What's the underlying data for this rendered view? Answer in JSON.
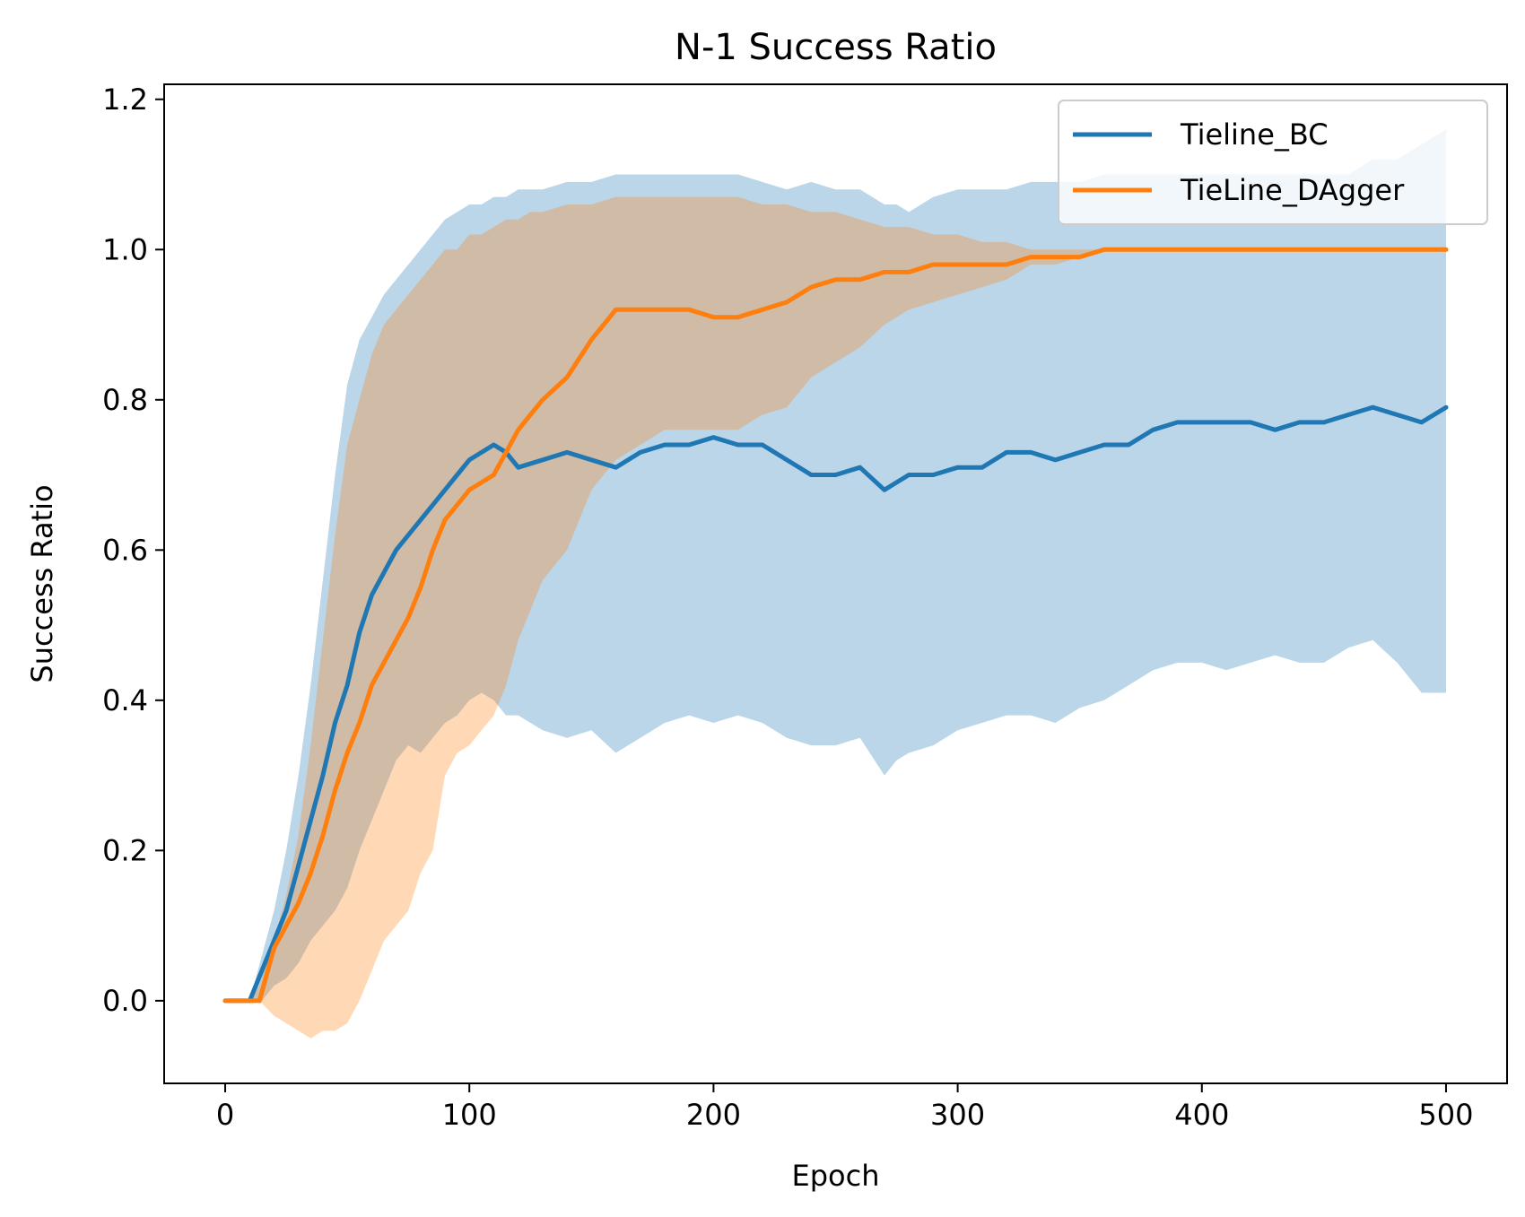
{
  "chart_data": {
    "type": "line",
    "title": "N-1 Success Ratio",
    "xlabel": "Epoch",
    "ylabel": "Success Ratio",
    "xlim": [
      -25,
      525
    ],
    "ylim": [
      -0.11,
      1.22
    ],
    "xticks": [
      0,
      100,
      200,
      300,
      400,
      500
    ],
    "yticks": [
      0.0,
      0.2,
      0.4,
      0.6,
      0.8,
      1.0,
      1.2
    ],
    "xtick_labels": [
      "0",
      "100",
      "200",
      "300",
      "400",
      "500"
    ],
    "ytick_labels": [
      "0.0",
      "0.2",
      "0.4",
      "0.6",
      "0.8",
      "1.0",
      "1.2"
    ],
    "grid": false,
    "legend_position": "top-right",
    "series": [
      {
        "name": "Tieline_BC",
        "color": "#1f77b4",
        "x": [
          0,
          10,
          15,
          20,
          25,
          30,
          35,
          40,
          45,
          50,
          55,
          60,
          65,
          70,
          75,
          80,
          85,
          90,
          95,
          100,
          105,
          110,
          115,
          120,
          130,
          140,
          150,
          160,
          170,
          180,
          190,
          200,
          210,
          220,
          230,
          240,
          250,
          260,
          270,
          275,
          280,
          290,
          300,
          310,
          320,
          330,
          340,
          350,
          360,
          370,
          380,
          390,
          400,
          410,
          420,
          430,
          440,
          450,
          460,
          470,
          480,
          490,
          500
        ],
        "y": [
          0.0,
          0.0,
          0.04,
          0.08,
          0.12,
          0.18,
          0.24,
          0.3,
          0.37,
          0.42,
          0.49,
          0.54,
          0.57,
          0.6,
          0.62,
          0.64,
          0.66,
          0.68,
          0.7,
          0.72,
          0.73,
          0.74,
          0.73,
          0.71,
          0.72,
          0.73,
          0.72,
          0.71,
          0.73,
          0.74,
          0.74,
          0.75,
          0.74,
          0.74,
          0.72,
          0.7,
          0.7,
          0.71,
          0.68,
          0.69,
          0.7,
          0.7,
          0.71,
          0.71,
          0.73,
          0.73,
          0.72,
          0.73,
          0.74,
          0.74,
          0.76,
          0.77,
          0.77,
          0.77,
          0.77,
          0.76,
          0.77,
          0.77,
          0.78,
          0.79,
          0.78,
          0.77,
          0.79
        ],
        "upper": [
          0.0,
          0.0,
          0.06,
          0.12,
          0.2,
          0.3,
          0.42,
          0.56,
          0.7,
          0.82,
          0.88,
          0.91,
          0.94,
          0.96,
          0.98,
          1.0,
          1.02,
          1.04,
          1.05,
          1.06,
          1.06,
          1.07,
          1.07,
          1.08,
          1.08,
          1.09,
          1.09,
          1.1,
          1.1,
          1.1,
          1.1,
          1.1,
          1.1,
          1.09,
          1.08,
          1.09,
          1.08,
          1.08,
          1.06,
          1.06,
          1.05,
          1.07,
          1.08,
          1.08,
          1.08,
          1.09,
          1.09,
          1.09,
          1.1,
          1.1,
          1.1,
          1.1,
          1.1,
          1.1,
          1.1,
          1.1,
          1.1,
          1.1,
          1.1,
          1.12,
          1.12,
          1.14,
          1.16
        ],
        "lower": [
          0.0,
          0.0,
          0.0,
          0.02,
          0.03,
          0.05,
          0.08,
          0.1,
          0.12,
          0.15,
          0.2,
          0.24,
          0.28,
          0.32,
          0.34,
          0.33,
          0.35,
          0.37,
          0.38,
          0.4,
          0.41,
          0.4,
          0.38,
          0.38,
          0.36,
          0.35,
          0.36,
          0.33,
          0.35,
          0.37,
          0.38,
          0.37,
          0.38,
          0.37,
          0.35,
          0.34,
          0.34,
          0.35,
          0.3,
          0.32,
          0.33,
          0.34,
          0.36,
          0.37,
          0.38,
          0.38,
          0.37,
          0.39,
          0.4,
          0.42,
          0.44,
          0.45,
          0.45,
          0.44,
          0.45,
          0.46,
          0.45,
          0.45,
          0.47,
          0.48,
          0.45,
          0.41,
          0.41
        ]
      },
      {
        "name": "TieLine_DAgger",
        "color": "#ff7f0e",
        "x": [
          0,
          10,
          14,
          20,
          25,
          30,
          35,
          40,
          45,
          50,
          55,
          60,
          65,
          70,
          75,
          80,
          85,
          90,
          95,
          100,
          105,
          110,
          115,
          120,
          125,
          130,
          140,
          150,
          160,
          170,
          180,
          190,
          200,
          210,
          220,
          230,
          240,
          250,
          260,
          270,
          280,
          290,
          300,
          310,
          320,
          330,
          340,
          350,
          360,
          370,
          380,
          400,
          420,
          450,
          480,
          500
        ],
        "y": [
          0.0,
          0.0,
          0.0,
          0.07,
          0.1,
          0.13,
          0.17,
          0.22,
          0.28,
          0.33,
          0.37,
          0.42,
          0.45,
          0.48,
          0.51,
          0.55,
          0.6,
          0.64,
          0.66,
          0.68,
          0.69,
          0.7,
          0.73,
          0.76,
          0.78,
          0.8,
          0.83,
          0.88,
          0.92,
          0.92,
          0.92,
          0.92,
          0.91,
          0.91,
          0.92,
          0.93,
          0.95,
          0.96,
          0.96,
          0.97,
          0.97,
          0.98,
          0.98,
          0.98,
          0.98,
          0.99,
          0.99,
          0.99,
          1.0,
          1.0,
          1.0,
          1.0,
          1.0,
          1.0,
          1.0,
          1.0
        ],
        "upper": [
          0.0,
          0.0,
          0.02,
          0.08,
          0.14,
          0.22,
          0.34,
          0.48,
          0.62,
          0.74,
          0.8,
          0.86,
          0.9,
          0.92,
          0.94,
          0.96,
          0.98,
          1.0,
          1.0,
          1.02,
          1.02,
          1.03,
          1.04,
          1.04,
          1.05,
          1.05,
          1.06,
          1.06,
          1.07,
          1.07,
          1.07,
          1.07,
          1.07,
          1.07,
          1.06,
          1.06,
          1.05,
          1.05,
          1.04,
          1.03,
          1.03,
          1.02,
          1.02,
          1.01,
          1.01,
          1.0,
          1.0,
          1.0,
          1.0,
          1.0,
          1.0,
          1.0,
          1.0,
          1.0,
          1.0,
          1.0
        ],
        "lower": [
          0.0,
          0.0,
          0.0,
          -0.02,
          -0.03,
          -0.04,
          -0.05,
          -0.04,
          -0.04,
          -0.03,
          0.0,
          0.04,
          0.08,
          0.1,
          0.12,
          0.17,
          0.2,
          0.3,
          0.33,
          0.34,
          0.36,
          0.38,
          0.42,
          0.48,
          0.52,
          0.56,
          0.6,
          0.68,
          0.72,
          0.74,
          0.76,
          0.76,
          0.76,
          0.76,
          0.78,
          0.79,
          0.83,
          0.85,
          0.87,
          0.9,
          0.92,
          0.93,
          0.94,
          0.95,
          0.96,
          0.98,
          0.98,
          0.99,
          1.0,
          1.0,
          1.0,
          1.0,
          1.0,
          1.0,
          1.0,
          1.0
        ]
      }
    ]
  }
}
